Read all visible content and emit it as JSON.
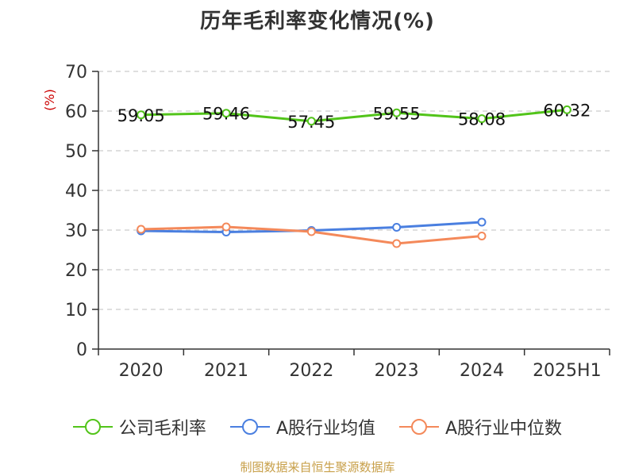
{
  "title": "历年毛利率变化情况(%)",
  "source": "制图数据来自恒生聚源数据库",
  "chart_data": {
    "type": "line",
    "title": "历年毛利率变化情况(%)",
    "ylabel": "(%)",
    "categories": [
      "2020",
      "2021",
      "2022",
      "2023",
      "2024",
      "2025H1"
    ],
    "ylim": [
      0,
      70
    ],
    "yticks": [
      0,
      10,
      20,
      30,
      40,
      50,
      60,
      70
    ],
    "grid": true,
    "legend_position": "bottom",
    "series": [
      {
        "name": "公司毛利率",
        "color": "#52c41a",
        "values": [
          59.05,
          59.46,
          57.45,
          59.55,
          58.08,
          60.32
        ],
        "labels": [
          "59.05",
          "59.46",
          "57.45",
          "59.55",
          "58.08",
          "60.32"
        ]
      },
      {
        "name": "A股行业均值",
        "color": "#4a7fe0",
        "values": [
          29.8,
          29.5,
          29.9,
          30.7,
          32.0,
          null
        ]
      },
      {
        "name": "A股行业中位数",
        "color": "#f4895a",
        "values": [
          30.2,
          30.8,
          29.6,
          26.6,
          28.5,
          null
        ]
      }
    ]
  }
}
